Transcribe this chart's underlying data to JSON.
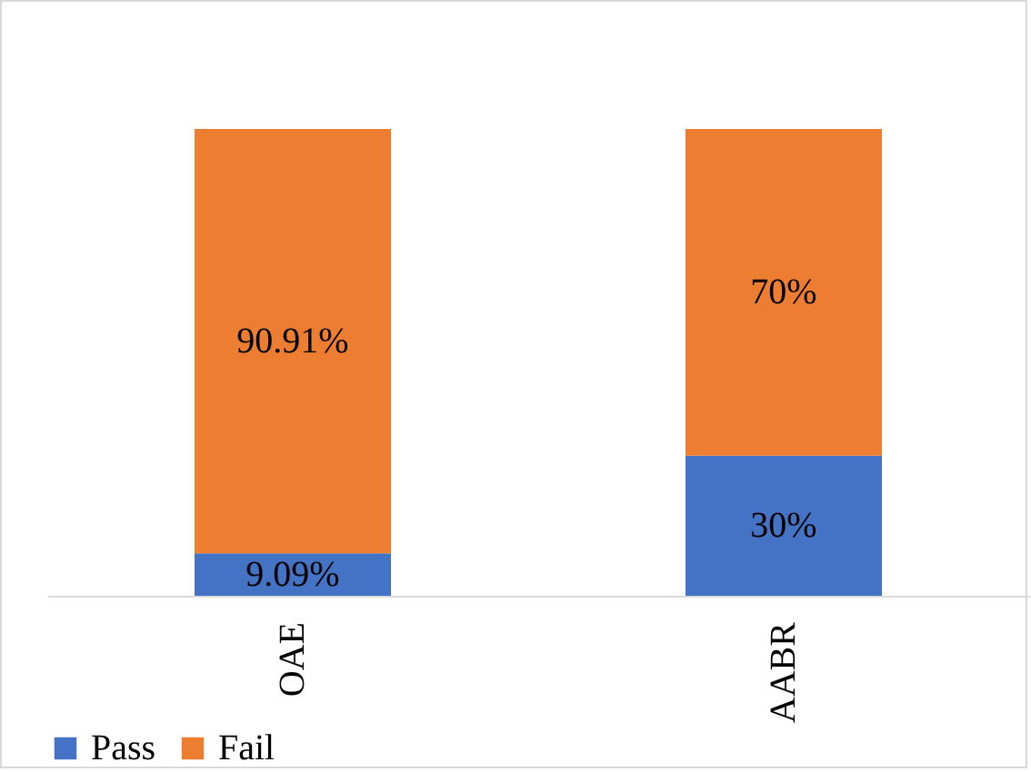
{
  "chart_data": {
    "type": "bar",
    "stacked": true,
    "categories": [
      "OAE",
      "AABR"
    ],
    "series": [
      {
        "name": "Pass",
        "color": "#4472c4",
        "values": [
          9.09,
          30
        ],
        "value_labels": [
          "9.09%",
          "30%"
        ]
      },
      {
        "name": "Fail",
        "color": "#ed7d31",
        "values": [
          90.91,
          70
        ],
        "value_labels": [
          "90.91%",
          "70%"
        ]
      }
    ],
    "legend": "bottom",
    "grid": false
  }
}
